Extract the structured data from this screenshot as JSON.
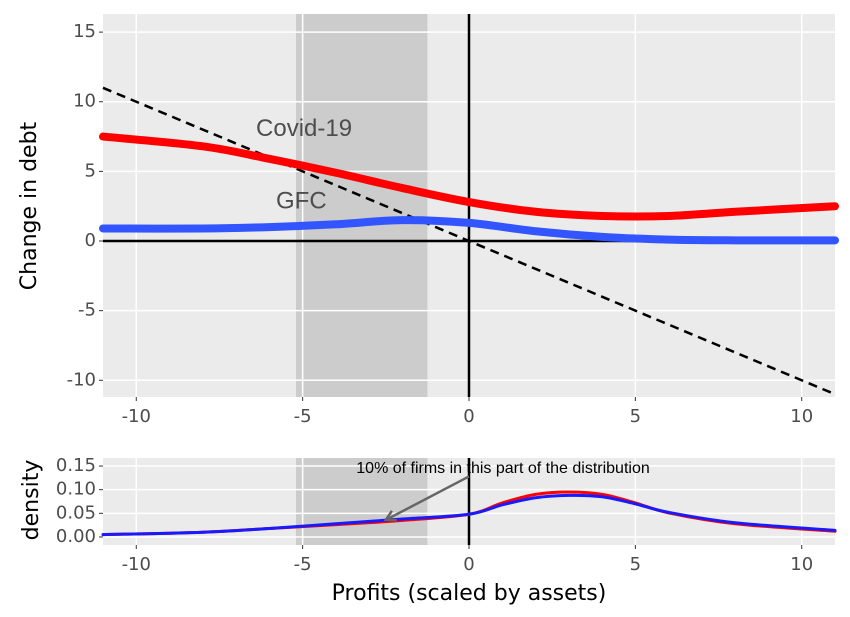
{
  "chart_data": [
    {
      "type": "line",
      "ylabel": "Change in debt",
      "x": [
        -11,
        -8,
        -6,
        -4,
        -2,
        0,
        2,
        4,
        6,
        8,
        11
      ],
      "series": [
        {
          "name": "Covid-19",
          "color": "#ff0000",
          "values": [
            7.5,
            6.8,
            5.9,
            4.9,
            3.8,
            2.8,
            2.1,
            1.8,
            1.8,
            2.1,
            2.5
          ]
        },
        {
          "name": "GFC",
          "color": "#3355ff",
          "values": [
            0.9,
            0.9,
            1.0,
            1.2,
            1.5,
            1.3,
            0.7,
            0.3,
            0.1,
            0.05,
            0.05
          ]
        }
      ],
      "reference_line": {
        "x": [
          -11,
          11
        ],
        "values": [
          11,
          -11
        ]
      },
      "shade": [
        -5.2,
        -1.25
      ],
      "hline": 0,
      "vline": 0,
      "xlim": [
        -11,
        11
      ],
      "xticks": [
        -10,
        -5,
        0,
        5,
        10
      ],
      "ylim": [
        -11.2,
        16.3
      ],
      "yticks": [
        -10,
        -5,
        0,
        5,
        10,
        15
      ],
      "grid": true
    },
    {
      "type": "line",
      "xlabel": "Profits (scaled by assets)",
      "ylabel": "density",
      "x": [
        -11,
        -8,
        -6,
        -4,
        -2,
        0,
        1,
        2,
        3,
        4,
        5,
        6,
        8,
        11
      ],
      "series": [
        {
          "color": "#ff0000",
          "values": [
            0.005,
            0.01,
            0.018,
            0.026,
            0.035,
            0.048,
            0.072,
            0.09,
            0.095,
            0.09,
            0.072,
            0.051,
            0.028,
            0.012
          ]
        },
        {
          "color": "#1a1aff",
          "values": [
            0.005,
            0.01,
            0.018,
            0.028,
            0.038,
            0.048,
            0.068,
            0.083,
            0.088,
            0.085,
            0.07,
            0.052,
            0.03,
            0.014
          ]
        }
      ],
      "annotation": {
        "text": "10% of firms in this part of the distribution",
        "x": [
          0,
          -2.5
        ],
        "y": [
          0.128,
          0.036
        ]
      },
      "shade": [
        -5.2,
        -1.25
      ],
      "vline": 0,
      "xlim": [
        -11,
        11
      ],
      "xticks": [
        -10,
        -5,
        0,
        5,
        10
      ],
      "ylim": [
        -0.017,
        0.167
      ],
      "yticks": [
        {
          "value": 0,
          "label": "0.00"
        },
        0.05,
        {
          "value": 0.1,
          "label": "0.10"
        },
        0.15
      ],
      "grid": true
    }
  ]
}
